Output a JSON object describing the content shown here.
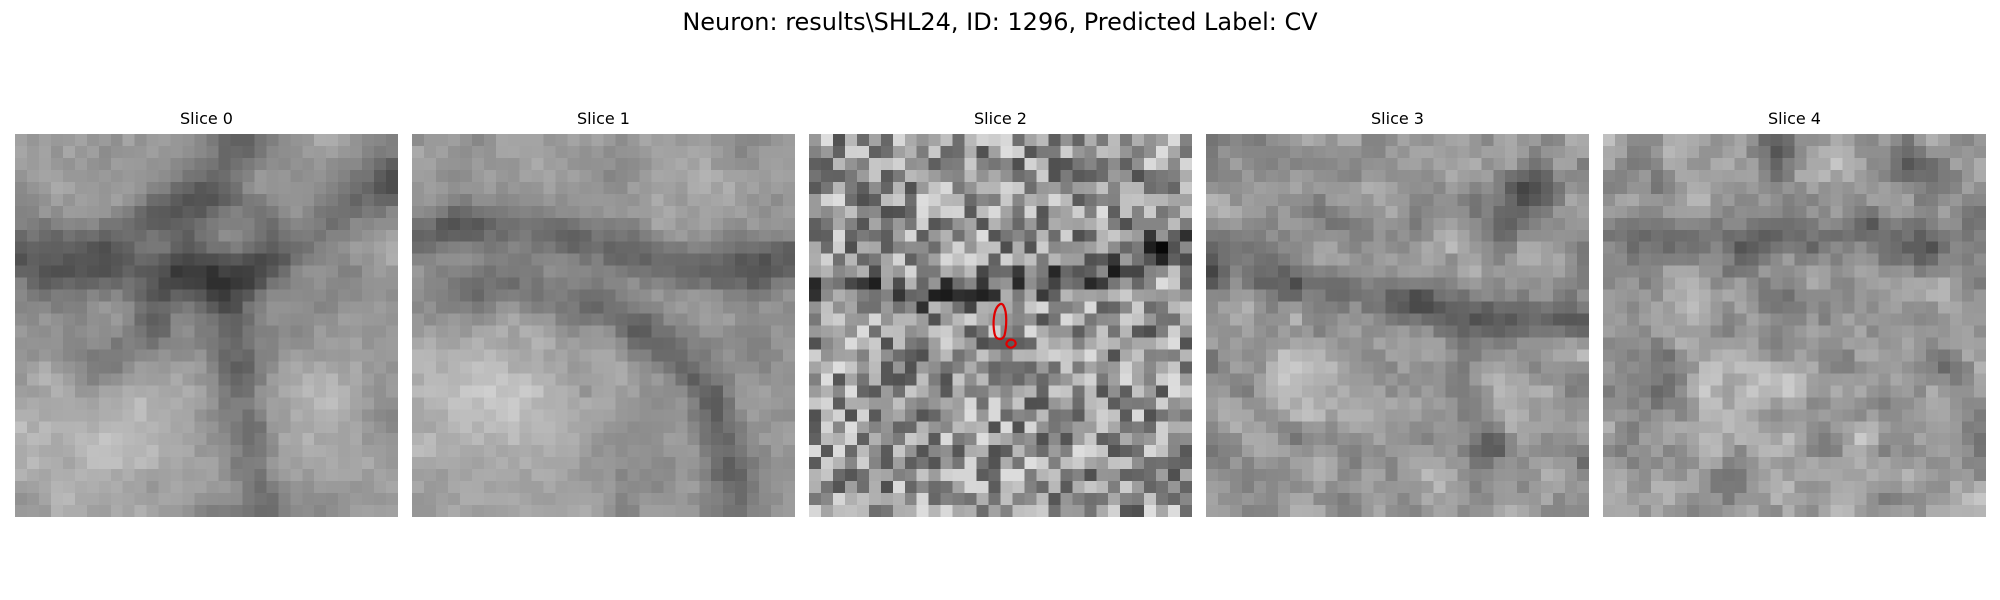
{
  "figure": {
    "title": "Neuron: results\\SHL24, ID: 1296, Predicted Label: CV"
  },
  "panels": [
    {
      "title": "Slice 0",
      "image": "grayscale-em-slice-0",
      "has_contour": false
    },
    {
      "title": "Slice 1",
      "image": "grayscale-em-slice-1",
      "has_contour": false
    },
    {
      "title": "Slice 2",
      "image": "grayscale-em-slice-2",
      "has_contour": true
    },
    {
      "title": "Slice 3",
      "image": "grayscale-em-slice-3",
      "has_contour": false
    },
    {
      "title": "Slice 4",
      "image": "grayscale-em-slice-4",
      "has_contour": false
    }
  ],
  "colors": {
    "contour": "#e00000"
  }
}
